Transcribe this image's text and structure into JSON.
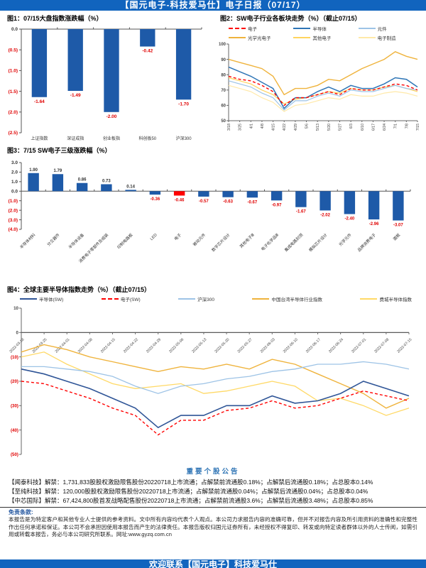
{
  "header": {
    "title": "【国元电子-科技爱马仕】电子日报（07/17）"
  },
  "chart_data": [
    {
      "id": "fig1",
      "type": "bar",
      "title": "图1：07/15大盘指数涨跌幅（%）",
      "categories": [
        "上证指数",
        "深证成指",
        "创业板指",
        "科创板50",
        "沪深300"
      ],
      "values": [
        -1.64,
        -1.49,
        -2.0,
        -0.42,
        -1.7
      ],
      "value_labels": [
        "-1.64",
        "-1.49",
        "-2.00",
        "-0.42",
        "-1.70"
      ],
      "ylim": [
        -2.5,
        0
      ],
      "y_ticks": [
        {
          "v": 0,
          "label": "0.0"
        },
        {
          "v": -0.5,
          "label": "(0.5)"
        },
        {
          "v": -1.0,
          "label": "(1.0)"
        },
        {
          "v": -1.5,
          "label": "(1.5)"
        },
        {
          "v": -2.0,
          "label": "(2.0)"
        },
        {
          "v": -2.5,
          "label": "(2.5)"
        }
      ],
      "bar_color": "#1E5AA8",
      "negative_label_color": "#E00000"
    },
    {
      "id": "fig2",
      "type": "line",
      "title": "图2：SW电子行业各板块走势（%）（截止07/15）",
      "x": [
        "3/18",
        "3/25",
        "4/1",
        "4/8",
        "4/15",
        "4/22",
        "4/29",
        "5/6",
        "5/13",
        "5/20",
        "5/27",
        "6/3",
        "6/10",
        "6/17",
        "6/24",
        "7/1",
        "7/8",
        "7/15"
      ],
      "ylim": [
        50,
        100
      ],
      "y_ticks": [
        {
          "v": 100,
          "label": "100"
        },
        {
          "v": 90,
          "label": "90"
        },
        {
          "v": 80,
          "label": "80"
        },
        {
          "v": 70,
          "label": "70"
        },
        {
          "v": 60,
          "label": "60"
        },
        {
          "v": 50,
          "label": "50"
        }
      ],
      "series": [
        {
          "name": "电子",
          "color": "#FF0000",
          "dash": "4 3",
          "width": 1.4,
          "values": [
            79,
            77,
            76,
            73,
            69,
            60,
            65,
            65,
            67,
            69,
            67,
            71,
            70,
            70,
            72,
            74,
            73,
            70
          ]
        },
        {
          "name": "半导体",
          "color": "#2E75B6",
          "width": 1.5,
          "values": [
            85,
            82,
            79,
            75,
            71,
            58,
            65,
            65,
            69,
            72,
            69,
            73,
            71,
            71,
            74,
            78,
            77,
            72
          ]
        },
        {
          "name": "元件",
          "color": "#9DC3E6",
          "width": 1.2,
          "values": [
            76,
            74,
            72,
            68,
            65,
            57,
            63,
            63,
            66,
            68,
            66,
            70,
            69,
            69,
            71,
            73,
            71,
            70
          ]
        },
        {
          "name": "光学光电子",
          "color": "#EFB33C",
          "width": 1.4,
          "values": [
            90,
            88,
            86,
            84,
            79,
            67,
            71,
            71,
            73,
            77,
            76,
            80,
            84,
            87,
            90,
            95,
            92,
            90
          ]
        },
        {
          "name": "其他电子",
          "color": "#FFD45E",
          "width": 1.2,
          "values": [
            78,
            76,
            74,
            70,
            67,
            61,
            64,
            65,
            67,
            69,
            68,
            71,
            70,
            70,
            72,
            73,
            71,
            69
          ]
        },
        {
          "name": "电子制造",
          "color": "#FFE9A8",
          "width": 1.2,
          "values": [
            73,
            71,
            69,
            65,
            62,
            56,
            60,
            61,
            63,
            65,
            64,
            67,
            66,
            66,
            68,
            69,
            68,
            66
          ]
        }
      ]
    },
    {
      "id": "fig3",
      "type": "bar",
      "title": "图3：7/15 SW电子三级涨跌幅（%）",
      "categories": [
        "半导体材料",
        "分立器件",
        "半导体设备",
        "消费电子零部件及组装",
        "印制电路板",
        "LED",
        "电子",
        "被动元件",
        "数字芯片设计",
        "其他电子Ⅲ",
        "电子化学品Ⅲ",
        "集成电路封测",
        "模拟芯片设计",
        "光学元件",
        "品牌消费电子",
        "面板"
      ],
      "values": [
        1.9,
        1.79,
        0.86,
        0.73,
        0.14,
        -0.36,
        -0.46,
        -0.57,
        -0.63,
        -0.67,
        -0.97,
        -1.67,
        -2.02,
        -2.4,
        -2.96,
        -3.07
      ],
      "value_labels": [
        "1.90",
        "1.79",
        "0.86",
        "0.73",
        "0.14",
        "-0.36",
        "-0.46",
        "-0.57",
        "-0.63",
        "-0.67",
        "-0.97",
        "-1.67",
        "-2.02",
        "-2.40",
        "-2.96",
        "-3.07"
      ],
      "highlight_index": 6,
      "highlight_color": "#FF0000",
      "ylim": [
        -4,
        3
      ],
      "y_ticks": [
        {
          "v": 3,
          "label": "3.0"
        },
        {
          "v": 2,
          "label": "2.0"
        },
        {
          "v": 1,
          "label": "1.0"
        },
        {
          "v": 0,
          "label": "0.0"
        },
        {
          "v": -1,
          "label": "(1.0)"
        },
        {
          "v": -2,
          "label": "(2.0)"
        },
        {
          "v": -3,
          "label": "(3.0)"
        },
        {
          "v": -4,
          "label": "(4.0)"
        }
      ],
      "bar_color": "#1E5AA8",
      "negative_label_color": "#E00000"
    },
    {
      "id": "fig4",
      "type": "line",
      "title": "图4：全球主要半导体指数走势（%）（截止07/15）",
      "x": [
        "2022-03-18",
        "2022-03-25",
        "2022-04-01",
        "2022-04-08",
        "2022-04-15",
        "2022-04-22",
        "2022-04-29",
        "2022-05-06",
        "2022-05-13",
        "2022-05-20",
        "2022-05-27",
        "2022-06-03",
        "2022-06-10",
        "2022-06-17",
        "2022-06-24",
        "2022-07-01",
        "2022-07-08",
        "2022-07-15"
      ],
      "ylim": [
        -50,
        10
      ],
      "y_ticks": [
        {
          "v": 10,
          "label": "10"
        },
        {
          "v": 0,
          "label": "0"
        },
        {
          "v": -10,
          "label": "(10)"
        },
        {
          "v": -20,
          "label": "(20)"
        },
        {
          "v": -30,
          "label": "(30)"
        },
        {
          "v": -40,
          "label": "(40)"
        },
        {
          "v": -50,
          "label": "(50)"
        }
      ],
      "series": [
        {
          "name": "半导体(SW)",
          "color": "#2F5597",
          "width": 1.6,
          "values": [
            -15,
            -17,
            -20,
            -23,
            -27,
            -31,
            -39,
            -34,
            -34,
            -30,
            -30,
            -26,
            -29,
            -28,
            -25,
            -20,
            -23,
            -26
          ]
        },
        {
          "name": "电子(SW)",
          "color": "#FF0000",
          "dash": "4 3",
          "width": 1.4,
          "values": [
            -20,
            -21,
            -24,
            -27,
            -31,
            -34,
            -42,
            -36,
            -36,
            -32,
            -31,
            -28,
            -31,
            -30,
            -27,
            -24,
            -26,
            -28
          ]
        },
        {
          "name": "沪深300",
          "color": "#9DC3E6",
          "width": 1.3,
          "values": [
            -14,
            -14,
            -15,
            -16,
            -18,
            -22,
            -25,
            -22,
            -21,
            -19,
            -18,
            -16,
            -15,
            -13,
            -13,
            -12,
            -13,
            -15
          ]
        },
        {
          "name": "中国台湾半导体行业指数",
          "color": "#EFB33C",
          "width": 1.4,
          "values": [
            -8,
            -5,
            -7,
            -10,
            -12,
            -14,
            -16,
            -14,
            -15,
            -13,
            -15,
            -11,
            -13,
            -17,
            -21,
            -25,
            -31,
            -27
          ]
        },
        {
          "name": "费城半导体指数",
          "color": "#FFD966",
          "width": 1.3,
          "values": [
            -10,
            -8,
            -13,
            -17,
            -21,
            -23,
            -22,
            -21,
            -25,
            -24,
            -22,
            -20,
            -22,
            -28,
            -27,
            -30,
            -34,
            -31
          ]
        }
      ]
    }
  ],
  "announcements": {
    "title": "重要个股公告",
    "items": [
      "【闻泰科技】解禁：1,731,833股股权激励限售股份20220718上市流通；占解禁前流通股0.18%；占解禁后流通股0.18%；占总股本0.14%",
      "【至纯科技】解禁：120,000股股权激励限售股份20220718上市流通；占解禁前流通股0.04%；占解禁后流通股0.04%；占总股本0.04%",
      "【中芯国际】解禁：67,424,800股首发战略配售股份20220718上市流通；占解禁前流通股3.6%；占解禁后流通股3.48%；占总股本0.85%"
    ]
  },
  "disclaimer": {
    "label": "免责条款:",
    "text": "本报告是为特定客户和其他专业人士提供的参考资料。文中所有内容均代表个人观点。本公司力求报告内容的准确可靠，但并不对报告内容及所引用资料的准确性和完整性作出任何承诺和保证。本公司不会承担因使用本报告而产生的法律责任。本报告版权归国元证券所有，未经授权不得复印、转发或向特定读者群体以外的人士传阅，如需引用或转载本报告，务必与本公司研究所联系。网址:www.gyzq.com.cn"
  },
  "footer": {
    "text": "欢迎联系【国元电子】科技爱马仕"
  }
}
